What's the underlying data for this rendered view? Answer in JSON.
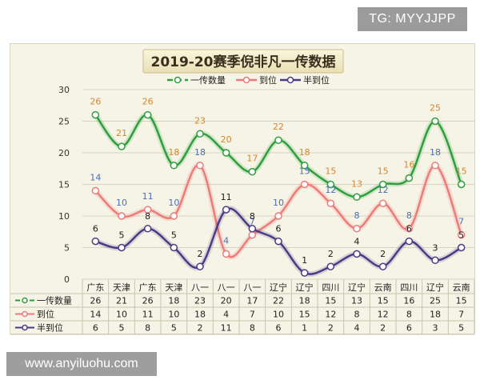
{
  "watermark_top": "TG: MYYJJPP",
  "watermark_bottom": "www.anyiluohu.com",
  "chart_data": {
    "type": "line",
    "title": "2019-20赛季倪非凡一传数据",
    "categories": [
      "广东",
      "天津",
      "广东",
      "天津",
      "八一",
      "八一",
      "八一",
      "辽宁",
      "辽宁",
      "四川",
      "辽宁",
      "云南",
      "四川",
      "辽宁",
      "云南"
    ],
    "ylim": [
      0,
      30
    ],
    "yticks": [
      0,
      5,
      10,
      15,
      20,
      25,
      30
    ],
    "grid": true,
    "legend_position": "top",
    "series": [
      {
        "name": "一传数量",
        "color": "#2e9e3e",
        "label_color": "#d6872e",
        "dashed": true,
        "values": [
          26,
          21,
          26,
          18,
          23,
          20,
          17,
          22,
          18,
          15,
          13,
          15,
          16,
          25,
          15
        ]
      },
      {
        "name": "到位",
        "color": "#ee7b78",
        "label_color": "#4a6fb5",
        "dashed": false,
        "values": [
          14,
          10,
          11,
          10,
          18,
          4,
          7,
          10,
          15,
          12,
          8,
          12,
          8,
          18,
          7
        ]
      },
      {
        "name": "半到位",
        "color": "#4b3a86",
        "label_color": "#1a1a1a",
        "dashed": false,
        "values": [
          6,
          5,
          8,
          5,
          2,
          11,
          8,
          6,
          1,
          2,
          4,
          2,
          6,
          3,
          5
        ]
      }
    ]
  }
}
